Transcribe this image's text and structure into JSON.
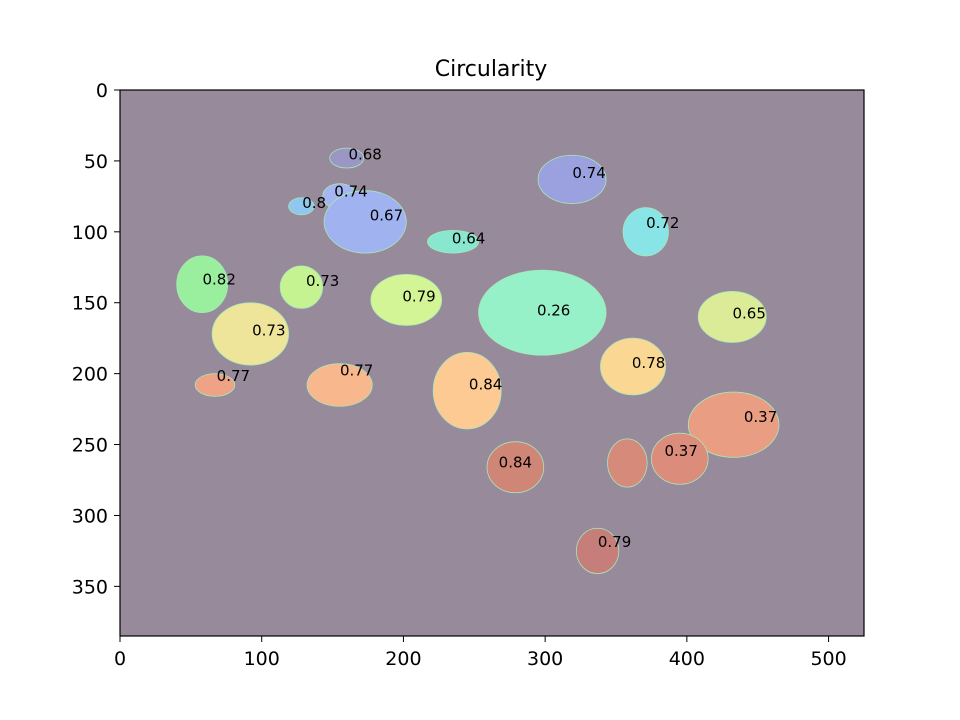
{
  "chart_data": {
    "type": "heatmap",
    "title": "Circularity",
    "xlabel": "",
    "ylabel": "",
    "xlim": [
      0,
      525
    ],
    "ylim": [
      0,
      385
    ],
    "y_inverted": true,
    "xticks": [
      0,
      100,
      200,
      300,
      400,
      500
    ],
    "yticks": [
      0,
      50,
      100,
      150,
      200,
      250,
      300,
      350
    ],
    "background_color": "#978a9b",
    "cells": [
      {
        "label": "0.68",
        "x": 160,
        "y": 48,
        "rx": 12,
        "ry": 7,
        "color": "#9b97c4"
      },
      {
        "label": "0.74",
        "x": 319,
        "y": 63,
        "rx": 24,
        "ry": 17,
        "color": "#9aa1de"
      },
      {
        "label": "0.74",
        "x": 155,
        "y": 75,
        "rx": 12,
        "ry": 9,
        "color": "#a6b6f1"
      },
      {
        "label": "0.8",
        "x": 128,
        "y": 82,
        "rx": 9,
        "ry": 6,
        "color": "#8fc7ee"
      },
      {
        "label": "0.67",
        "x": 173,
        "y": 93,
        "rx": 29,
        "ry": 22,
        "color": "#a1b2f0"
      },
      {
        "label": "0.72",
        "x": 371,
        "y": 100,
        "rx": 16,
        "ry": 17,
        "color": "#88e4e6"
      },
      {
        "label": "0.64",
        "x": 235,
        "y": 107,
        "rx": 18,
        "ry": 8,
        "color": "#89e6cf"
      },
      {
        "label": "0.82",
        "x": 58,
        "y": 137,
        "rx": 18,
        "ry": 20,
        "color": "#99ef9e"
      },
      {
        "label": "0.73",
        "x": 128,
        "y": 139,
        "rx": 15,
        "ry": 15,
        "color": "#c6f392"
      },
      {
        "label": "0.79",
        "x": 202,
        "y": 148,
        "rx": 25,
        "ry": 18,
        "color": "#d4f596"
      },
      {
        "label": "0.26",
        "x": 298,
        "y": 157,
        "rx": 45,
        "ry": 30,
        "color": "#96f0c8"
      },
      {
        "label": "0.65",
        "x": 432,
        "y": 160,
        "rx": 24,
        "ry": 18,
        "color": "#dbeb98"
      },
      {
        "label": "0.73",
        "x": 92,
        "y": 172,
        "rx": 27,
        "ry": 22,
        "color": "#eee59a"
      },
      {
        "label": "0.78",
        "x": 362,
        "y": 195,
        "rx": 23,
        "ry": 20,
        "color": "#fbd794"
      },
      {
        "label": "0.77",
        "x": 155,
        "y": 208,
        "rx": 23,
        "ry": 15,
        "color": "#f8b78c"
      },
      {
        "label": "0.77",
        "x": 67,
        "y": 208,
        "rx": 14,
        "ry": 8,
        "color": "#eea286"
      },
      {
        "label": "0.84",
        "x": 245,
        "y": 212,
        "rx": 24,
        "ry": 27,
        "color": "#fcca92"
      },
      {
        "label": "0.37",
        "x": 433,
        "y": 236,
        "rx": 32,
        "ry": 23,
        "color": "#e99d82"
      },
      {
        "label": "0.37",
        "x": 395,
        "y": 260,
        "rx": 20,
        "ry": 18,
        "color": "#dc8c7a"
      },
      {
        "label": "0.84",
        "x": 279,
        "y": 266,
        "rx": 20,
        "ry": 18,
        "color": "#cf8677"
      },
      {
        "label": "0.37",
        "x": 358,
        "y": 263,
        "rx": 14,
        "ry": 17,
        "color": "#d68a7a"
      },
      {
        "label": "0.79",
        "x": 337,
        "y": 325,
        "rx": 15,
        "ry": 16,
        "color": "#c67e7a"
      }
    ],
    "labels": [
      {
        "text": "0.68",
        "x": 173,
        "y": 46
      },
      {
        "text": "0.74",
        "x": 331,
        "y": 59
      },
      {
        "text": "0.74",
        "x": 163,
        "y": 72
      },
      {
        "text": "0.8",
        "x": 137,
        "y": 80
      },
      {
        "text": "0.67",
        "x": 188,
        "y": 89
      },
      {
        "text": "0.72",
        "x": 383,
        "y": 94
      },
      {
        "text": "0.64",
        "x": 246,
        "y": 105
      },
      {
        "text": "0.82",
        "x": 70,
        "y": 134
      },
      {
        "text": "0.73",
        "x": 143,
        "y": 135
      },
      {
        "text": "0.79",
        "x": 211,
        "y": 146
      },
      {
        "text": "0.26",
        "x": 306,
        "y": 156
      },
      {
        "text": "0.65",
        "x": 444,
        "y": 158
      },
      {
        "text": "0.73",
        "x": 105,
        "y": 170
      },
      {
        "text": "0.78",
        "x": 373,
        "y": 193
      },
      {
        "text": "0.77",
        "x": 167,
        "y": 198
      },
      {
        "text": "0.77",
        "x": 80,
        "y": 202
      },
      {
        "text": "0.84",
        "x": 258,
        "y": 208
      },
      {
        "text": "0.37",
        "x": 452,
        "y": 231
      },
      {
        "text": "0.37",
        "x": 396,
        "y": 255
      },
      {
        "text": "0.84",
        "x": 279,
        "y": 263
      },
      {
        "text": "0.79",
        "x": 349,
        "y": 319
      }
    ]
  }
}
